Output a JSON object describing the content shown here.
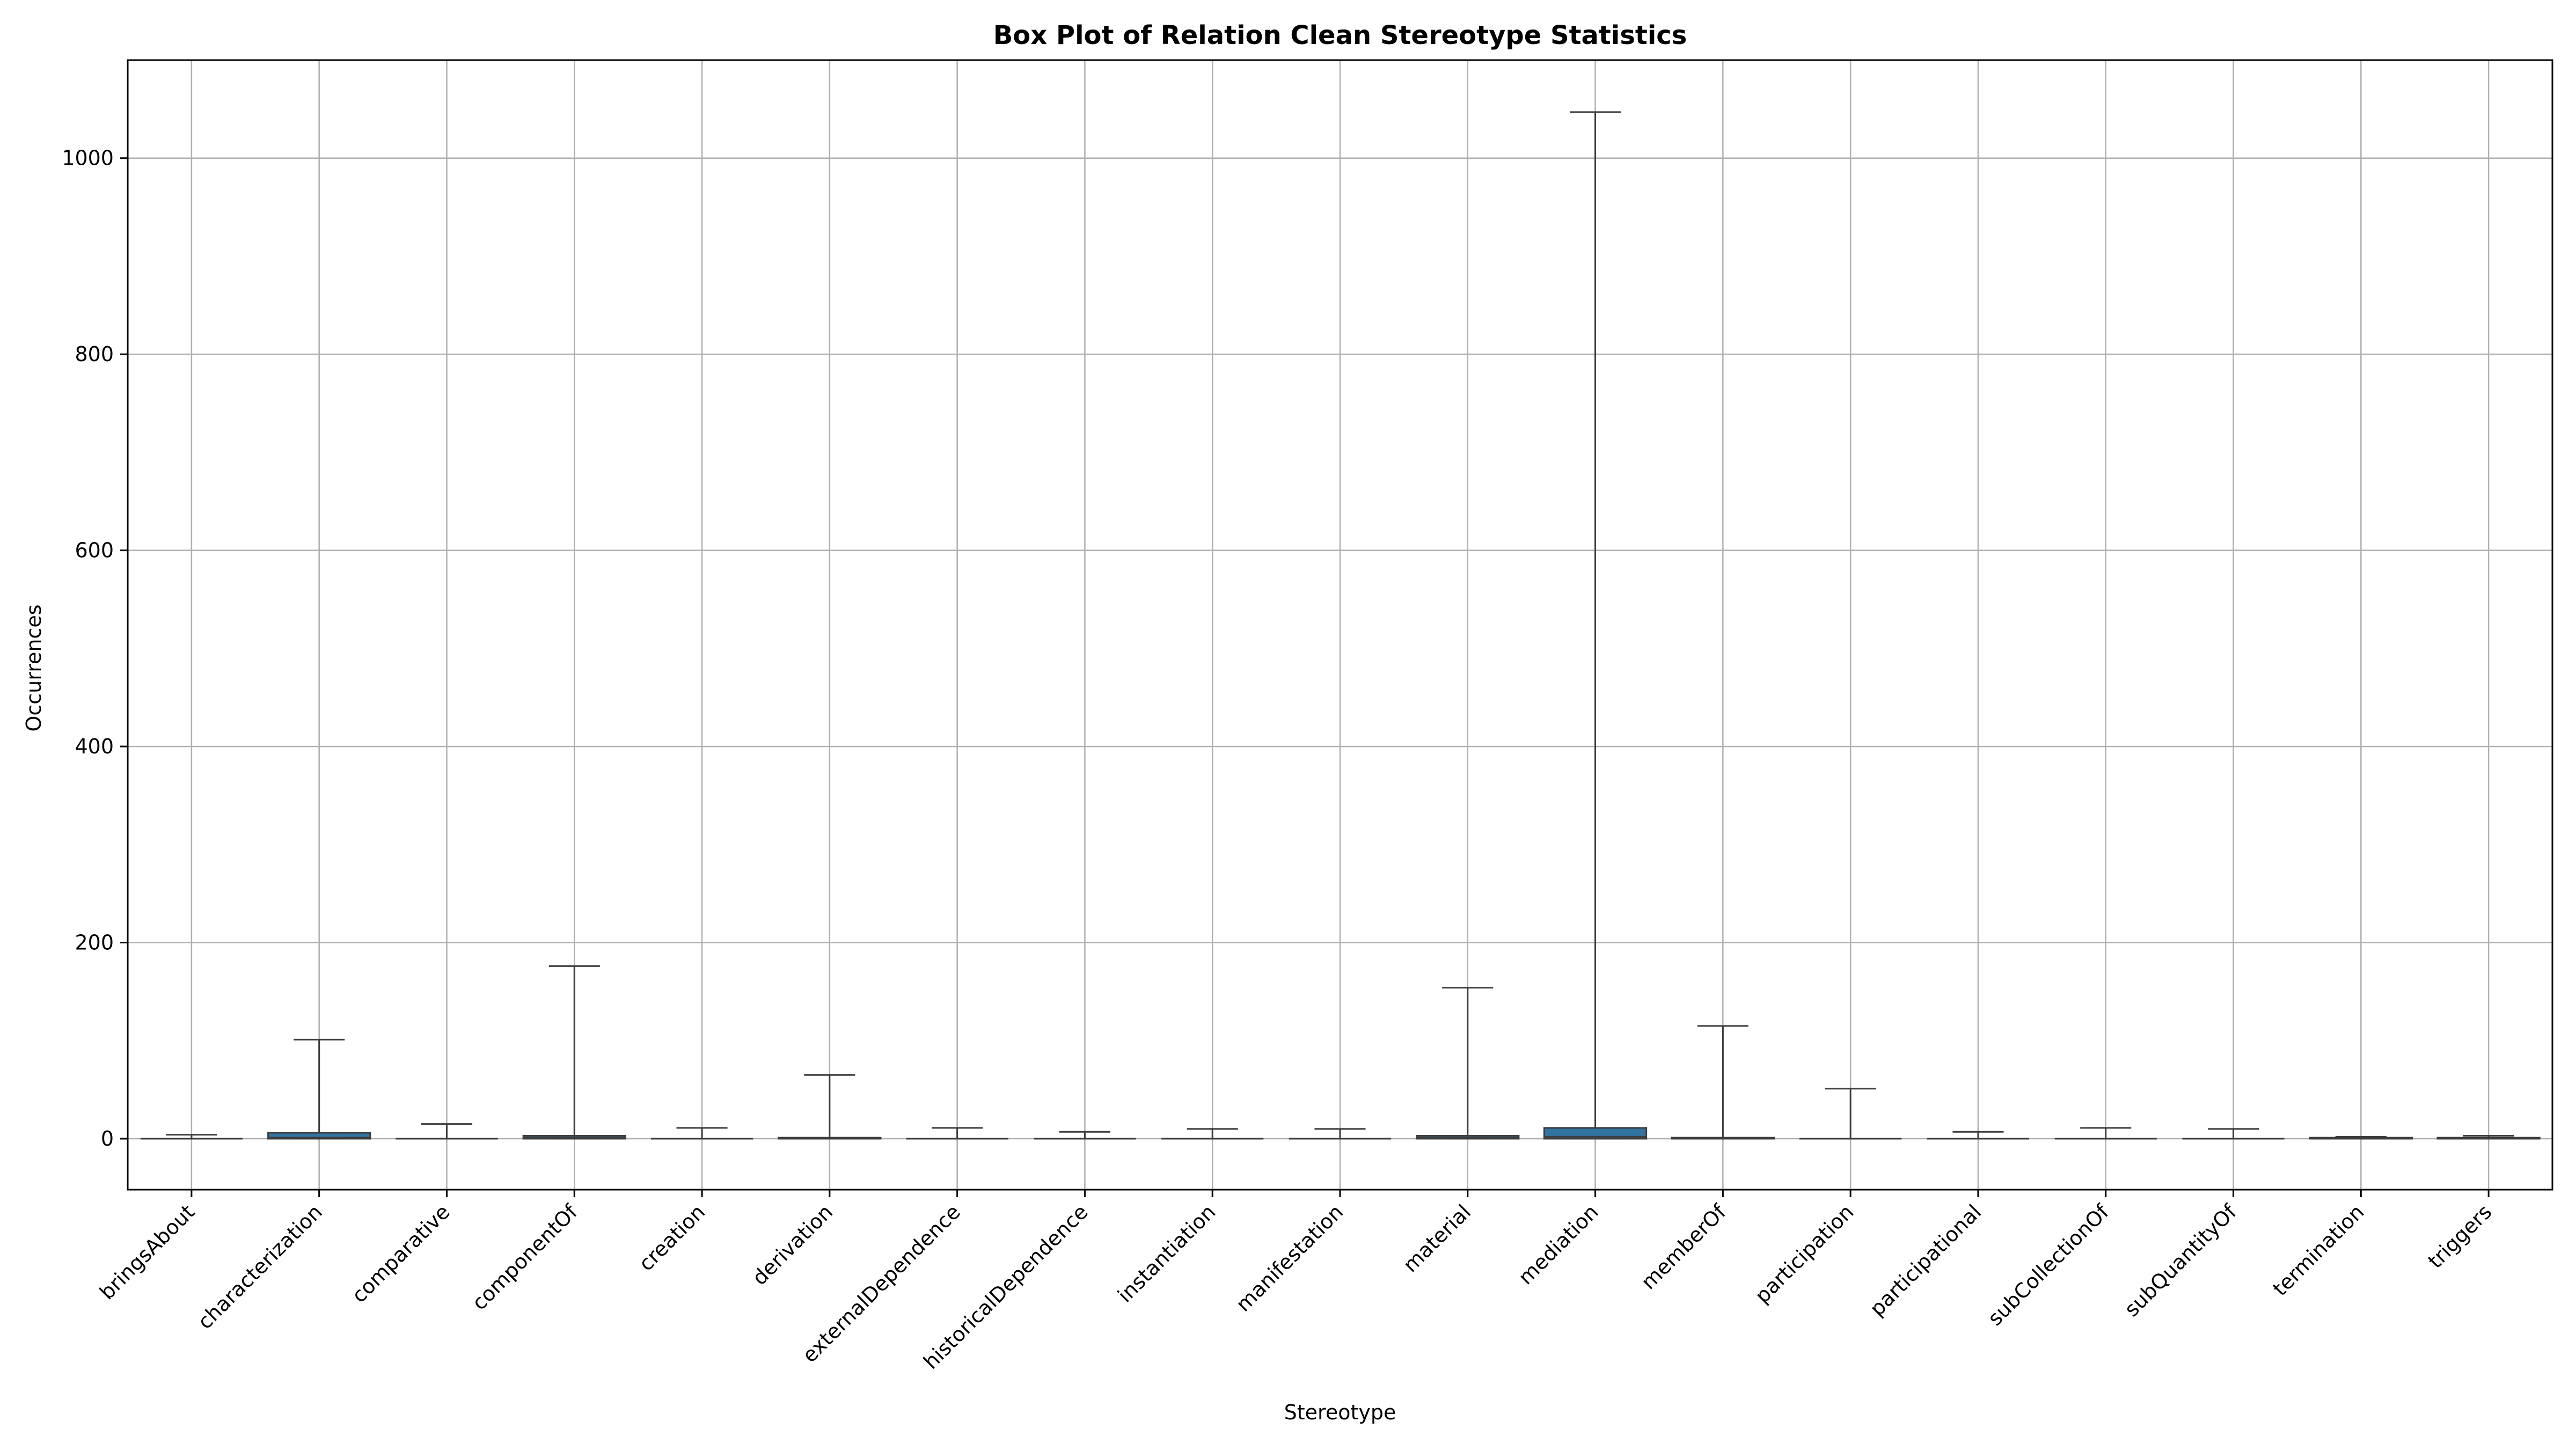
{
  "chart_data": {
    "type": "box",
    "title": "Box Plot of Relation Clean Stereotype Statistics",
    "xlabel": "Stereotype",
    "ylabel": "Occurrences",
    "ylim": [
      -52,
      1100
    ],
    "yticks": [
      0,
      200,
      400,
      600,
      800,
      1000
    ],
    "grid": true,
    "box_color": "#3274a1",
    "categories": [
      "bringsAbout",
      "characterization",
      "comparative",
      "componentOf",
      "creation",
      "derivation",
      "externalDependence",
      "historicalDependence",
      "instantiation",
      "manifestation",
      "material",
      "mediation",
      "memberOf",
      "participation",
      "participational",
      "subCollectionOf",
      "subQuantityOf",
      "termination",
      "triggers"
    ],
    "series": [
      {
        "stats": [
          {
            "min": 0,
            "q1": 0,
            "median": 0,
            "q3": 0,
            "max": 4
          },
          {
            "min": 0,
            "q1": 0,
            "median": 1,
            "q3": 6,
            "max": 101
          },
          {
            "min": 0,
            "q1": 0,
            "median": 0,
            "q3": 0,
            "max": 15
          },
          {
            "min": 0,
            "q1": 0,
            "median": 1,
            "q3": 3,
            "max": 176
          },
          {
            "min": 0,
            "q1": 0,
            "median": 0,
            "q3": 0,
            "max": 11
          },
          {
            "min": 0,
            "q1": 0,
            "median": 0,
            "q3": 1,
            "max": 65
          },
          {
            "min": 0,
            "q1": 0,
            "median": 0,
            "q3": 0,
            "max": 11
          },
          {
            "min": 0,
            "q1": 0,
            "median": 0,
            "q3": 0,
            "max": 7
          },
          {
            "min": 0,
            "q1": 0,
            "median": 0,
            "q3": 0,
            "max": 10
          },
          {
            "min": 0,
            "q1": 0,
            "median": 0,
            "q3": 0,
            "max": 10
          },
          {
            "min": 0,
            "q1": 0,
            "median": 1,
            "q3": 3,
            "max": 154
          },
          {
            "min": 0,
            "q1": 0,
            "median": 2,
            "q3": 11,
            "max": 1047
          },
          {
            "min": 0,
            "q1": 0,
            "median": 0,
            "q3": 1,
            "max": 115
          },
          {
            "min": 0,
            "q1": 0,
            "median": 0,
            "q3": 0,
            "max": 51
          },
          {
            "min": 0,
            "q1": 0,
            "median": 0,
            "q3": 0,
            "max": 7
          },
          {
            "min": 0,
            "q1": 0,
            "median": 0,
            "q3": 0,
            "max": 11
          },
          {
            "min": 0,
            "q1": 0,
            "median": 0,
            "q3": 0,
            "max": 10
          },
          {
            "min": 0,
            "q1": 0,
            "median": 0,
            "q3": 1,
            "max": 2
          },
          {
            "min": 0,
            "q1": 0,
            "median": 0,
            "q3": 1,
            "max": 3
          }
        ]
      }
    ]
  }
}
